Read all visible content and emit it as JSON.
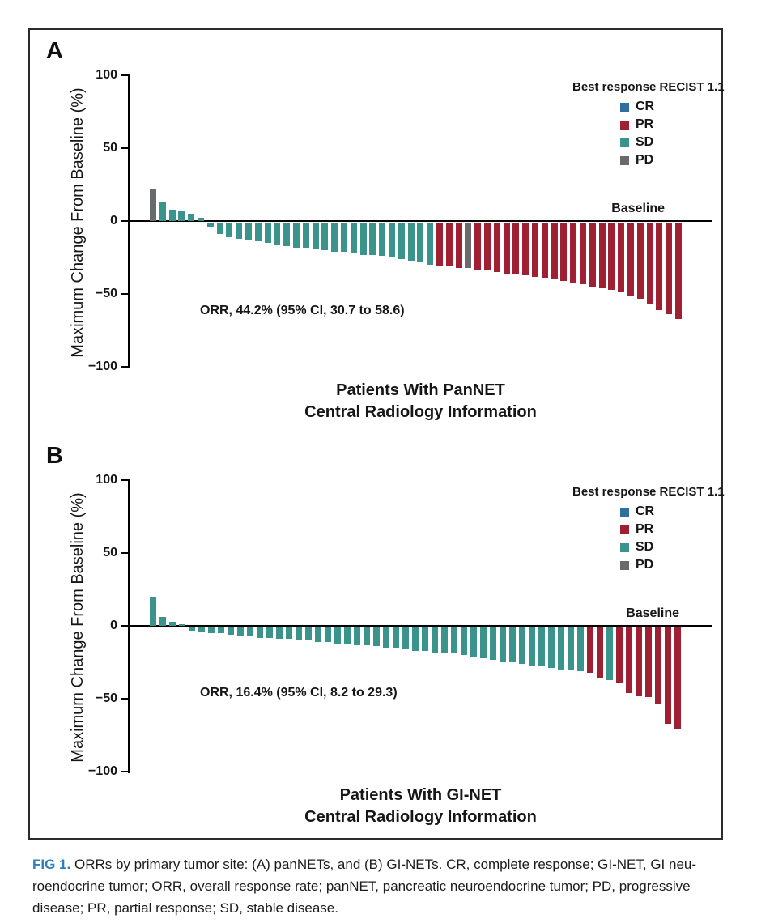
{
  "ui": {
    "panels": [
      {
        "letter": "A"
      },
      {
        "letter": "B"
      }
    ],
    "colors": {
      "CR": "#2F6F9F",
      "PR": "#A02033",
      "SD": "#3B948C",
      "PD": "#696A6C"
    },
    "caption": {
      "tag": "FIG 1.",
      "lines": [
        "ORRs by primary tumor site: (A) panNETs, and (B) GI-NETs. CR, complete response; GI-NET, GI neu-",
        "roendocrine tumor; ORR, overall response rate; panNET, pancreatic neuroendocrine tumor; PD, progressive",
        "disease; PR, partial response; SD, stable disease."
      ]
    }
  },
  "chart_data": [
    {
      "type": "bar",
      "panel": "A",
      "title": "Patients With PanNET",
      "subtitle": "Central Radiology Information",
      "ylabel": "Maximum Change From Baseline (%)",
      "ylim": [
        -100,
        100
      ],
      "yticks": [
        100,
        50,
        0,
        -50,
        -100
      ],
      "annotation": "ORR, 44.2% (95% CI, 30.7 to 58.6)",
      "baseline_label": "Baseline",
      "legend": {
        "title": "Best response RECIST 1.1",
        "items": [
          "CR",
          "PR",
          "SD",
          "PD"
        ],
        "position": "upper right"
      },
      "grid": false,
      "values": [
        22,
        13,
        8,
        7,
        5,
        2,
        -3,
        -8,
        -10,
        -11,
        -12,
        -13,
        -14,
        -15,
        -16,
        -17,
        -17,
        -18,
        -19,
        -20,
        -20,
        -21,
        -22,
        -22,
        -23,
        -24,
        -25,
        -26,
        -27,
        -29,
        -30,
        -30,
        -31,
        -31,
        -32,
        -33,
        -34,
        -35,
        -35,
        -36,
        -37,
        -38,
        -39,
        -40,
        -41,
        -42,
        -44,
        -45,
        -46,
        -48,
        -50,
        -52,
        -56,
        -60,
        -63,
        -66
      ],
      "responses": [
        "PD",
        "SD",
        "SD",
        "SD",
        "SD",
        "SD",
        "SD",
        "SD",
        "SD",
        "SD",
        "SD",
        "SD",
        "SD",
        "SD",
        "SD",
        "SD",
        "SD",
        "SD",
        "SD",
        "SD",
        "SD",
        "SD",
        "SD",
        "SD",
        "SD",
        "SD",
        "SD",
        "SD",
        "SD",
        "SD",
        "PR",
        "PR",
        "PR",
        "PD",
        "PR",
        "PR",
        "PR",
        "PR",
        "PR",
        "PR",
        "PR",
        "PR",
        "PR",
        "PR",
        "PR",
        "PR",
        "PR",
        "PR",
        "PR",
        "PR",
        "PR",
        "PR",
        "PR",
        "PR",
        "PR",
        "PR"
      ]
    },
    {
      "type": "bar",
      "panel": "B",
      "title": "Patients With GI-NET",
      "subtitle": "Central Radiology Information",
      "ylabel": "Maximum Change From Baseline (%)",
      "ylim": [
        -100,
        100
      ],
      "yticks": [
        100,
        50,
        0,
        -50,
        -100
      ],
      "annotation": "ORR, 16.4% (95% CI, 8.2 to 29.3)",
      "baseline_label": "Baseline",
      "legend": {
        "title": "Best response RECIST 1.1",
        "items": [
          "CR",
          "PR",
          "SD",
          "PD"
        ],
        "position": "upper right"
      },
      "grid": false,
      "values": [
        20,
        6,
        3,
        1,
        -2,
        -3,
        -4,
        -4,
        -5,
        -6,
        -6,
        -7,
        -7,
        -8,
        -8,
        -9,
        -9,
        -10,
        -10,
        -11,
        -11,
        -12,
        -12,
        -13,
        -14,
        -14,
        -15,
        -16,
        -16,
        -17,
        -18,
        -18,
        -19,
        -20,
        -21,
        -22,
        -24,
        -24,
        -25,
        -26,
        -26,
        -28,
        -29,
        -29,
        -30,
        -31,
        -35,
        -36,
        -38,
        -45,
        -47,
        -48,
        -53,
        -66,
        -70
      ],
      "responses": [
        "SD",
        "SD",
        "SD",
        "SD",
        "SD",
        "SD",
        "SD",
        "SD",
        "SD",
        "SD",
        "SD",
        "SD",
        "SD",
        "SD",
        "SD",
        "SD",
        "SD",
        "SD",
        "SD",
        "SD",
        "SD",
        "SD",
        "SD",
        "SD",
        "SD",
        "SD",
        "SD",
        "SD",
        "SD",
        "SD",
        "SD",
        "SD",
        "SD",
        "SD",
        "SD",
        "SD",
        "SD",
        "SD",
        "SD",
        "SD",
        "SD",
        "SD",
        "SD",
        "SD",
        "SD",
        "PR",
        "PR",
        "SD",
        "PR",
        "PR",
        "PR",
        "PR",
        "PR",
        "PR",
        "PR"
      ]
    }
  ]
}
